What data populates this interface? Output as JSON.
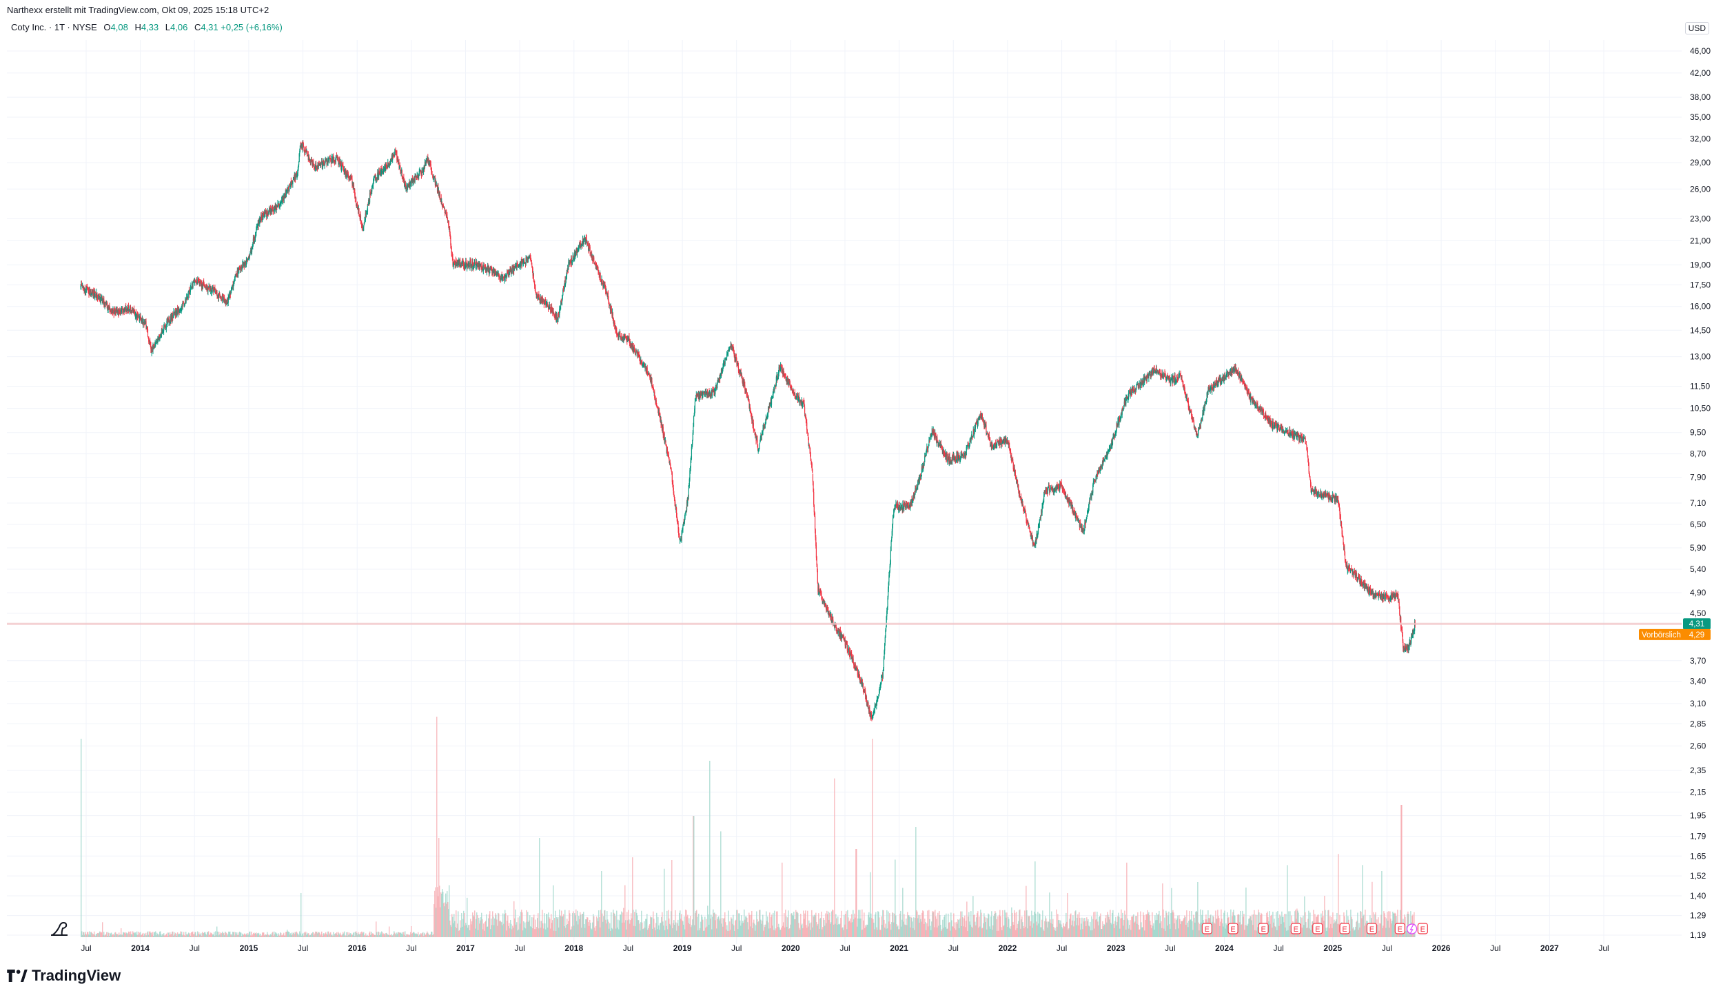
{
  "header": {
    "attribution": "Narthexx erstellt mit TradingView.com, Okt 09, 2025 15:18 UTC+2",
    "currency": "USD"
  },
  "legend": {
    "symbol": "Coty Inc. · 1T · NYSE",
    "open_label": "O",
    "open": "4,08",
    "high_label": "H",
    "high": "4,33",
    "low_label": "L",
    "low": "4,06",
    "close_label": "C",
    "close": "4,31",
    "change": "+0,25 (+6,16%)"
  },
  "price_tags": {
    "last": "4,31",
    "premarket_label": "Vorbörslich",
    "premarket": "4,29"
  },
  "footer": {
    "brand": "TradingView"
  },
  "colors": {
    "up": "#089981",
    "down": "#f23645",
    "premarket": "#fb8c00",
    "grid": "#f0f3fa"
  },
  "chart_data": {
    "type": "candlestick",
    "scale": "log",
    "ylim": [
      1.19,
      46
    ],
    "y_ticks": [
      {
        "label": "46,00",
        "v": 46
      },
      {
        "label": "42,00",
        "v": 42
      },
      {
        "label": "38,00",
        "v": 38
      },
      {
        "label": "35,00",
        "v": 35
      },
      {
        "label": "32,00",
        "v": 32
      },
      {
        "label": "29,00",
        "v": 29
      },
      {
        "label": "26,00",
        "v": 26
      },
      {
        "label": "23,00",
        "v": 23
      },
      {
        "label": "21,00",
        "v": 21
      },
      {
        "label": "19,00",
        "v": 19
      },
      {
        "label": "17,50",
        "v": 17.5
      },
      {
        "label": "16,00",
        "v": 16
      },
      {
        "label": "14,50",
        "v": 14.5
      },
      {
        "label": "13,00",
        "v": 13
      },
      {
        "label": "11,50",
        "v": 11.5
      },
      {
        "label": "10,50",
        "v": 10.5
      },
      {
        "label": "9,50",
        "v": 9.5
      },
      {
        "label": "8,70",
        "v": 8.7
      },
      {
        "label": "7,90",
        "v": 7.9
      },
      {
        "label": "7,10",
        "v": 7.1
      },
      {
        "label": "6,50",
        "v": 6.5
      },
      {
        "label": "5,90",
        "v": 5.9
      },
      {
        "label": "5,40",
        "v": 5.4
      },
      {
        "label": "4,90",
        "v": 4.9
      },
      {
        "label": "4,50",
        "v": 4.5
      },
      {
        "label": "3,70",
        "v": 3.7
      },
      {
        "label": "3,40",
        "v": 3.4
      },
      {
        "label": "3,10",
        "v": 3.1
      },
      {
        "label": "2,85",
        "v": 2.85
      },
      {
        "label": "2,60",
        "v": 2.6
      },
      {
        "label": "2,35",
        "v": 2.35
      },
      {
        "label": "2,15",
        "v": 2.15
      },
      {
        "label": "1,95",
        "v": 1.95
      },
      {
        "label": "1,79",
        "v": 1.79
      },
      {
        "label": "1,65",
        "v": 1.65
      },
      {
        "label": "1,52",
        "v": 1.52
      },
      {
        "label": "1,40",
        "v": 1.4
      },
      {
        "label": "1,29",
        "v": 1.29
      },
      {
        "label": "1,19",
        "v": 1.19
      }
    ],
    "x_range": [
      2013.37,
      2027.92
    ],
    "x_ticks": [
      {
        "label": "Jul",
        "t": 2013.5,
        "bold": false
      },
      {
        "label": "2014",
        "t": 2014.0,
        "bold": true
      },
      {
        "label": "Jul",
        "t": 2014.5,
        "bold": false
      },
      {
        "label": "2015",
        "t": 2015.0,
        "bold": true
      },
      {
        "label": "Jul",
        "t": 2015.5,
        "bold": false
      },
      {
        "label": "2016",
        "t": 2016.0,
        "bold": true
      },
      {
        "label": "Jul",
        "t": 2016.5,
        "bold": false
      },
      {
        "label": "2017",
        "t": 2017.0,
        "bold": true
      },
      {
        "label": "Jul",
        "t": 2017.5,
        "bold": false
      },
      {
        "label": "2018",
        "t": 2018.0,
        "bold": true
      },
      {
        "label": "Jul",
        "t": 2018.5,
        "bold": false
      },
      {
        "label": "2019",
        "t": 2019.0,
        "bold": true
      },
      {
        "label": "Jul",
        "t": 2019.5,
        "bold": false
      },
      {
        "label": "2020",
        "t": 2020.0,
        "bold": true
      },
      {
        "label": "Jul",
        "t": 2020.5,
        "bold": false
      },
      {
        "label": "2021",
        "t": 2021.0,
        "bold": true
      },
      {
        "label": "Jul",
        "t": 2021.5,
        "bold": false
      },
      {
        "label": "2022",
        "t": 2022.0,
        "bold": true
      },
      {
        "label": "Jul",
        "t": 2022.5,
        "bold": false
      },
      {
        "label": "2023",
        "t": 2023.0,
        "bold": true
      },
      {
        "label": "Jul",
        "t": 2023.5,
        "bold": false
      },
      {
        "label": "2024",
        "t": 2024.0,
        "bold": true
      },
      {
        "label": "Jul",
        "t": 2024.5,
        "bold": false
      },
      {
        "label": "2025",
        "t": 2025.0,
        "bold": true
      },
      {
        "label": "Jul",
        "t": 2025.5,
        "bold": false
      },
      {
        "label": "2026",
        "t": 2026.0,
        "bold": true
      },
      {
        "label": "Jul",
        "t": 2026.5,
        "bold": false
      },
      {
        "label": "2027",
        "t": 2027.0,
        "bold": true
      },
      {
        "label": "Jul",
        "t": 2027.5,
        "bold": false
      }
    ],
    "price_path": [
      [
        2013.45,
        17.3
      ],
      [
        2013.6,
        16.8
      ],
      [
        2013.75,
        15.6
      ],
      [
        2013.9,
        15.9
      ],
      [
        2014.05,
        14.8
      ],
      [
        2014.1,
        13.4
      ],
      [
        2014.25,
        15.0
      ],
      [
        2014.4,
        16.2
      ],
      [
        2014.5,
        17.8
      ],
      [
        2014.65,
        17.2
      ],
      [
        2014.8,
        16.3
      ],
      [
        2014.9,
        18.5
      ],
      [
        2015.0,
        19.5
      ],
      [
        2015.1,
        23.0
      ],
      [
        2015.3,
        24.5
      ],
      [
        2015.45,
        28.0
      ],
      [
        2015.48,
        31.5
      ],
      [
        2015.6,
        28.5
      ],
      [
        2015.8,
        29.5
      ],
      [
        2015.95,
        27.0
      ],
      [
        2016.05,
        22.0
      ],
      [
        2016.15,
        27.0
      ],
      [
        2016.3,
        29.0
      ],
      [
        2016.35,
        30.5
      ],
      [
        2016.45,
        26.0
      ],
      [
        2016.6,
        28.0
      ],
      [
        2016.65,
        29.5
      ],
      [
        2016.8,
        24.0
      ],
      [
        2016.85,
        22.0
      ],
      [
        2016.88,
        19.2
      ],
      [
        2017.1,
        19.0
      ],
      [
        2017.25,
        18.5
      ],
      [
        2017.35,
        18.0
      ],
      [
        2017.45,
        18.8
      ],
      [
        2017.6,
        19.6
      ],
      [
        2017.65,
        16.8
      ],
      [
        2017.75,
        16.2
      ],
      [
        2017.85,
        15.2
      ],
      [
        2017.95,
        19.0
      ],
      [
        2018.1,
        21.2
      ],
      [
        2018.2,
        19.0
      ],
      [
        2018.3,
        17.0
      ],
      [
        2018.4,
        14.2
      ],
      [
        2018.5,
        14.0
      ],
      [
        2018.7,
        12.0
      ],
      [
        2018.8,
        10.0
      ],
      [
        2018.9,
        8.0
      ],
      [
        2018.98,
        6.0
      ],
      [
        2019.05,
        7.2
      ],
      [
        2019.12,
        11.0
      ],
      [
        2019.3,
        11.3
      ],
      [
        2019.45,
        13.7
      ],
      [
        2019.6,
        11.0
      ],
      [
        2019.7,
        8.9
      ],
      [
        2019.8,
        10.5
      ],
      [
        2019.9,
        12.5
      ],
      [
        2020.05,
        11.0
      ],
      [
        2020.12,
        10.7
      ],
      [
        2020.2,
        8.0
      ],
      [
        2020.25,
        5.0
      ],
      [
        2020.3,
        4.7
      ],
      [
        2020.4,
        4.3
      ],
      [
        2020.5,
        4.0
      ],
      [
        2020.65,
        3.4
      ],
      [
        2020.75,
        2.9
      ],
      [
        2020.85,
        3.5
      ],
      [
        2020.9,
        5.0
      ],
      [
        2020.95,
        7.0
      ],
      [
        2021.1,
        7.0
      ],
      [
        2021.2,
        8.0
      ],
      [
        2021.3,
        9.6
      ],
      [
        2021.45,
        8.5
      ],
      [
        2021.6,
        8.6
      ],
      [
        2021.75,
        10.3
      ],
      [
        2021.85,
        9.0
      ],
      [
        2022.0,
        9.2
      ],
      [
        2022.1,
        7.5
      ],
      [
        2022.25,
        5.9
      ],
      [
        2022.35,
        7.5
      ],
      [
        2022.5,
        7.6
      ],
      [
        2022.7,
        6.3
      ],
      [
        2022.8,
        7.8
      ],
      [
        2022.95,
        9.0
      ],
      [
        2023.1,
        11.0
      ],
      [
        2023.35,
        12.3
      ],
      [
        2023.5,
        11.8
      ],
      [
        2023.6,
        12.0
      ],
      [
        2023.75,
        9.3
      ],
      [
        2023.85,
        11.3
      ],
      [
        2024.1,
        12.4
      ],
      [
        2024.25,
        10.9
      ],
      [
        2024.45,
        9.8
      ],
      [
        2024.6,
        9.5
      ],
      [
        2024.75,
        9.2
      ],
      [
        2024.8,
        7.5
      ],
      [
        2024.95,
        7.3
      ],
      [
        2025.05,
        7.2
      ],
      [
        2025.12,
        5.5
      ],
      [
        2025.2,
        5.3
      ],
      [
        2025.35,
        4.9
      ],
      [
        2025.45,
        4.8
      ],
      [
        2025.6,
        4.85
      ],
      [
        2025.65,
        3.9
      ],
      [
        2025.7,
        3.9
      ],
      [
        2025.76,
        4.31
      ]
    ],
    "volume_spikes": [
      [
        2013.45,
        0.9
      ],
      [
        2015.48,
        0.2
      ],
      [
        2016.73,
        1.0
      ],
      [
        2016.75,
        0.45
      ],
      [
        2019.1,
        0.55
      ],
      [
        2019.25,
        0.8
      ],
      [
        2019.35,
        0.48
      ],
      [
        2020.4,
        0.72
      ],
      [
        2020.6,
        0.4
      ],
      [
        2020.75,
        0.9
      ],
      [
        2021.15,
        0.5
      ],
      [
        2022.55,
        0.2
      ],
      [
        2023.75,
        0.25
      ],
      [
        2025.45,
        0.3
      ],
      [
        2025.63,
        0.6
      ],
      [
        2018.25,
        0.3
      ],
      [
        2017.68,
        0.45
      ],
      [
        2018.9,
        0.35
      ]
    ],
    "earnings_markers": [
      {
        "t": 2023.84,
        "kind": "E"
      },
      {
        "t": 2024.08,
        "kind": "E"
      },
      {
        "t": 2024.36,
        "kind": "E"
      },
      {
        "t": 2024.66,
        "kind": "E"
      },
      {
        "t": 2024.86,
        "kind": "E"
      },
      {
        "t": 2025.11,
        "kind": "E"
      },
      {
        "t": 2025.36,
        "kind": "E"
      },
      {
        "t": 2025.62,
        "kind": "E"
      },
      {
        "t": 2025.73,
        "kind": "dividend"
      },
      {
        "t": 2025.83,
        "kind": "E"
      }
    ],
    "last_price": 4.31,
    "premarket_price": 4.29
  }
}
